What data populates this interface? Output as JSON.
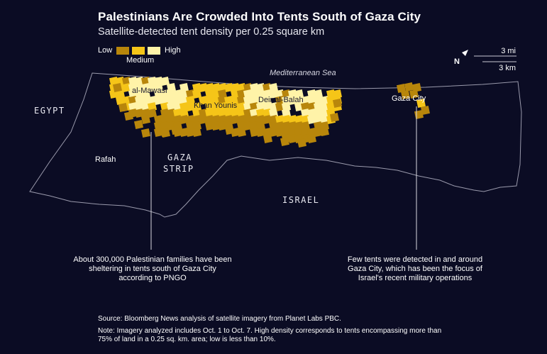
{
  "title": "Palestinians Are Crowded Into Tents South of Gaza City",
  "subtitle": "Satellite-detected tent density per 0.25 square km",
  "legend": {
    "low_label": "Low",
    "medium_label": "Medium",
    "high_label": "High",
    "colors": {
      "low": "#b8860b",
      "medium": "#f5c518",
      "high": "#fff3a8"
    }
  },
  "scale": {
    "mi_label": "3 mi",
    "km_label": "3 km",
    "north_label": "N"
  },
  "labels": {
    "sea": "Mediterranean Sea",
    "egypt": "EGYPT",
    "israel": "ISRAEL",
    "gaza_line1": "GAZA",
    "gaza_line2": "STRIP",
    "al_mawasi": "al-Mawasi",
    "khan_younis": "Khan Younis",
    "deir_al_balah": "Deir al-Balah",
    "gaza_city": "Gaza City",
    "rafah": "Rafah"
  },
  "annotations": {
    "south": "About 300,000 Palestinian families have been sheltering in tents south of Gaza City according to PNGO",
    "north": "Few tents were detected in and around Gaza City, which has been the focus of Israel's recent military operations"
  },
  "source": "Source: Bloomberg News analysis of satellite imagery from Planet Labs PBC.",
  "note": "Note: Imagery analyzed includes Oct. 1 to Oct. 7. High density corresponds to tents encompassing more than 75% of land in a 0.25 sq. km. area; low is less than 10%."
}
